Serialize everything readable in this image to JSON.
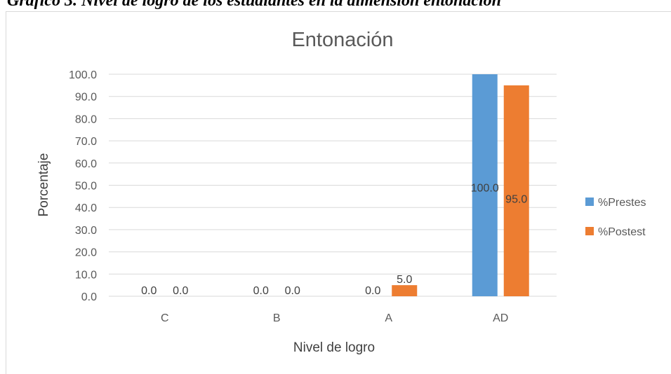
{
  "caption": "Gráfico 3. Nivel de logro de los estudiantes en la dimensión entonación",
  "chart_data": {
    "type": "bar",
    "title": "Entonación",
    "xlabel": "Nivel de logro",
    "ylabel": "Porcentaje",
    "categories": [
      "C",
      "B",
      "A",
      "AD"
    ],
    "ylim": [
      0,
      100
    ],
    "yticks": [
      "0.0",
      "10.0",
      "20.0",
      "30.0",
      "40.0",
      "50.0",
      "60.0",
      "70.0",
      "80.0",
      "90.0",
      "100.0"
    ],
    "grid": true,
    "legend_position": "right",
    "series": [
      {
        "name": "%Prestes",
        "color": "#5b9bd5",
        "values": [
          0.0,
          0.0,
          0.0,
          100.0
        ],
        "labels": [
          "0.0",
          "0.0",
          "0.0",
          "100.0"
        ]
      },
      {
        "name": "%Postest",
        "color": "#ed7d31",
        "values": [
          0.0,
          0.0,
          5.0,
          95.0
        ],
        "labels": [
          "0.0",
          "0.0",
          "5.0",
          "95.0"
        ]
      }
    ]
  }
}
